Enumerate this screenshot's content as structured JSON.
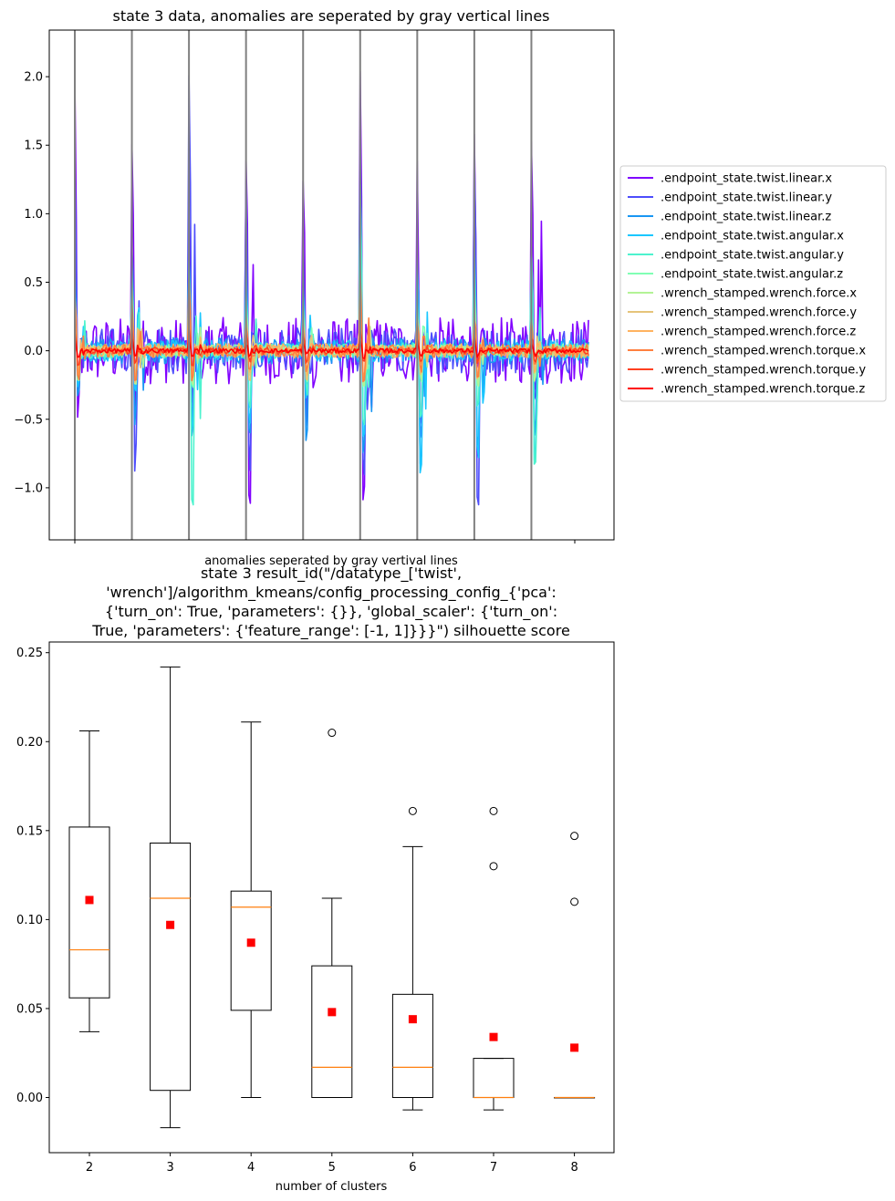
{
  "chart_data": [
    {
      "type": "line",
      "title": "state 3 data, anomalies are seperated by gray vertical lines",
      "xlabel": "anomalies seperated by gray vertival lines",
      "ylabel": "",
      "ylim": [
        -1.38,
        2.34
      ],
      "y_ticks": [
        "−1.0",
        "−0.5",
        "0.0",
        "0.5",
        "1.0",
        "1.5",
        "2.0"
      ],
      "y_tick_values": [
        -1.0,
        -0.5,
        0.0,
        0.5,
        1.0,
        1.5,
        2.0
      ],
      "x_tick_count": 2,
      "grid": false,
      "legend_position": "right outside",
      "segments": 9,
      "anomaly_separator_color": "#808080",
      "series": [
        {
          "name": ".endpoint_state.twist.linear.x",
          "color": "#8000ff",
          "peaks": [
            1.92,
            1.49,
            0.84,
            1.53,
            1.36,
            1.8,
            1.19,
            1.82,
            1.73
          ],
          "troughs": [
            -0.61,
            -0.33,
            -0.3,
            -1.14,
            -0.35,
            -1.19,
            -0.34,
            -0.3,
            -0.35
          ]
        },
        {
          "name": ".endpoint_state.twist.linear.y",
          "color": "#4d4dfc",
          "peaks": [
            1.45,
            0.9,
            2.17,
            1.22,
            0.7,
            1.5,
            0.7,
            1.4,
            0.6
          ],
          "troughs": [
            -0.3,
            -0.9,
            -0.4,
            -0.89,
            -0.6,
            -0.85,
            -0.6,
            -1.18,
            -0.45
          ]
        },
        {
          "name": ".endpoint_state.twist.linear.z",
          "color": "#1996f3",
          "peaks": [
            0.6,
            0.5,
            0.7,
            0.5,
            0.4,
            0.6,
            0.4,
            0.6,
            0.4
          ],
          "troughs": [
            -0.4,
            -0.5,
            -0.6,
            -0.66,
            -0.7,
            -0.8,
            -0.9,
            -0.7,
            -0.6
          ]
        },
        {
          "name": ".endpoint_state.twist.angular.x",
          "color": "#1ac7ff",
          "peaks": [
            0.5,
            0.7,
            0.65,
            0.55,
            0.45,
            1.2,
            0.65,
            0.8,
            0.82
          ],
          "troughs": [
            -0.3,
            -0.3,
            -0.6,
            -0.5,
            -0.3,
            -0.7,
            -1.0,
            -0.8,
            -0.85
          ]
        },
        {
          "name": ".endpoint_state.twist.angular.y",
          "color": "#4df3ce",
          "peaks": [
            0.4,
            0.5,
            0.6,
            0.4,
            0.35,
            1.18,
            0.4,
            0.6,
            0.8
          ],
          "troughs": [
            -0.2,
            -0.2,
            -1.19,
            -0.4,
            -0.3,
            -0.6,
            -0.5,
            -0.4,
            -0.87
          ]
        },
        {
          "name": ".endpoint_state.twist.angular.z",
          "color": "#80ffb4",
          "peaks": [
            0.3,
            0.3,
            0.35,
            0.3,
            0.3,
            0.4,
            0.3,
            0.4,
            0.3
          ],
          "troughs": [
            -0.2,
            -0.2,
            -0.25,
            -0.2,
            -0.2,
            -0.25,
            -0.2,
            -0.25,
            -0.2
          ]
        },
        {
          "name": ".wrench_stamped.wrench.force.x",
          "color": "#b3f396",
          "peaks": [
            0.25,
            0.45,
            0.4,
            0.25,
            0.2,
            0.3,
            0.25,
            0.3,
            0.2
          ],
          "troughs": [
            -0.2,
            -0.3,
            -0.25,
            -0.2,
            -0.2,
            -0.25,
            -0.2,
            -0.25,
            -0.2
          ]
        },
        {
          "name": ".wrench_stamped.wrench.force.y",
          "color": "#e6c47a",
          "peaks": [
            0.2,
            0.35,
            0.3,
            0.2,
            0.2,
            0.25,
            0.2,
            0.25,
            0.2
          ],
          "troughs": [
            -0.2,
            -0.25,
            -0.2,
            -0.2,
            -0.2,
            -0.2,
            -0.2,
            -0.2,
            -0.2
          ]
        },
        {
          "name": ".wrench_stamped.wrench.force.z",
          "color": "#ffb360",
          "peaks": [
            0.35,
            0.3,
            0.3,
            0.2,
            0.2,
            0.25,
            0.2,
            0.25,
            0.2
          ],
          "troughs": [
            -0.2,
            -0.2,
            -0.2,
            -0.15,
            -0.15,
            -0.2,
            -0.15,
            -0.2,
            -0.15
          ]
        },
        {
          "name": ".wrench_stamped.wrench.torque.x",
          "color": "#ff8040",
          "peaks": [
            0.3,
            0.35,
            0.5,
            0.2,
            0.2,
            0.55,
            0.2,
            0.25,
            0.2
          ],
          "troughs": [
            -0.2,
            -0.2,
            -0.2,
            -0.15,
            -0.15,
            -0.2,
            -0.15,
            -0.2,
            -0.15
          ]
        },
        {
          "name": ".wrench_stamped.wrench.torque.y",
          "color": "#ff4020",
          "peaks": [
            0.15,
            0.15,
            0.15,
            0.1,
            0.1,
            0.15,
            0.1,
            0.12,
            0.1
          ],
          "troughs": [
            -0.1,
            -0.1,
            -0.1,
            -0.08,
            -0.08,
            -0.1,
            -0.08,
            -0.08,
            -0.08
          ]
        },
        {
          "name": ".wrench_stamped.wrench.torque.z",
          "color": "#ff0000",
          "peaks": [
            0.08,
            0.08,
            0.08,
            0.05,
            0.05,
            0.08,
            0.05,
            0.06,
            0.05
          ],
          "troughs": [
            -0.05,
            -0.05,
            -0.05,
            -0.03,
            -0.03,
            -0.05,
            -0.03,
            -0.04,
            -0.03
          ]
        }
      ]
    },
    {
      "type": "box",
      "title": "state 3 result_id(\"/datatype_['twist', 'wrench']/algorithm_kmeans/config_processing_config_{'pca': {'turn_on': True, 'parameters': {}}, 'global_scaler': {'turn_on': True, 'parameters': {'feature_range': [-1, 1]}}}\") silhouette score",
      "title_lines": [
        "state 3 result_id(\"/datatype_['twist',",
        "'wrench']/algorithm_kmeans/config_processing_config_{'pca':",
        "{'turn_on': True, 'parameters': {}}, 'global_scaler': {'turn_on':",
        "True, 'parameters': {'feature_range': [-1, 1]}}}\") silhouette score"
      ],
      "xlabel": "number of clusters",
      "ylabel": "",
      "ylim": [
        -0.031,
        0.256
      ],
      "y_ticks": [
        "0.00",
        "0.05",
        "0.10",
        "0.15",
        "0.20",
        "0.25"
      ],
      "y_tick_values": [
        0.0,
        0.05,
        0.1,
        0.15,
        0.2,
        0.25
      ],
      "grid": false,
      "categories": [
        "2",
        "3",
        "4",
        "5",
        "6",
        "7",
        "8"
      ],
      "box_color": "#000000",
      "median_color": "#ff7f0e",
      "mean_color": "#ff0000",
      "boxes": [
        {
          "label": "2",
          "whisker_low": 0.037,
          "q1": 0.056,
          "median": 0.083,
          "q3": 0.152,
          "whisker_high": 0.206,
          "mean": 0.111,
          "fliers": []
        },
        {
          "label": "3",
          "whisker_low": -0.017,
          "q1": 0.004,
          "median": 0.112,
          "q3": 0.143,
          "whisker_high": 0.242,
          "mean": 0.097,
          "fliers": []
        },
        {
          "label": "4",
          "whisker_low": 0.0,
          "q1": 0.049,
          "median": 0.107,
          "q3": 0.116,
          "whisker_high": 0.211,
          "mean": 0.087,
          "fliers": []
        },
        {
          "label": "5",
          "whisker_low": 0.0,
          "q1": 0.0,
          "median": 0.017,
          "q3": 0.074,
          "whisker_high": 0.112,
          "mean": 0.048,
          "fliers": [
            0.205
          ]
        },
        {
          "label": "6",
          "whisker_low": -0.007,
          "q1": 0.0,
          "median": 0.017,
          "q3": 0.058,
          "whisker_high": 0.141,
          "mean": 0.044,
          "fliers": [
            0.161
          ]
        },
        {
          "label": "7",
          "whisker_low": -0.007,
          "q1": 0.0,
          "median": 0.0,
          "q3": 0.022,
          "whisker_high": 0.022,
          "mean": 0.034,
          "fliers": [
            0.13,
            0.161
          ]
        },
        {
          "label": "8",
          "whisker_low": 0.0,
          "q1": 0.0,
          "median": 0.0,
          "q3": 0.0,
          "whisker_high": 0.0,
          "mean": 0.028,
          "fliers": [
            0.11,
            0.147
          ]
        }
      ]
    }
  ]
}
